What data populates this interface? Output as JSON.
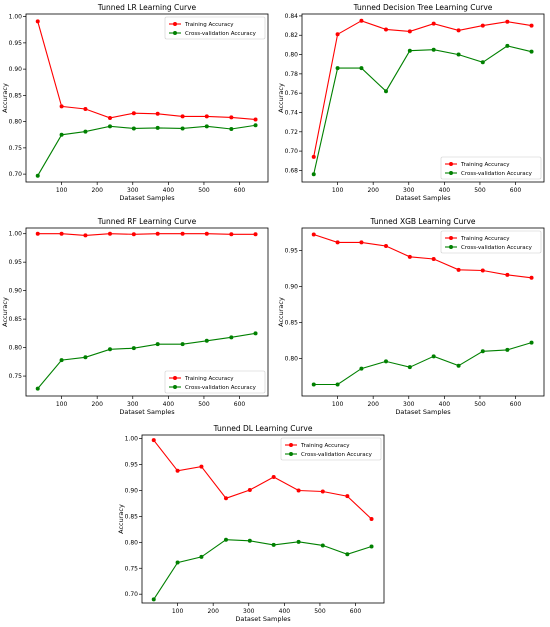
{
  "chart_data": [
    {
      "type": "line",
      "title": "Tunned LR Learning Curve",
      "xlabel": "Dataset Samples",
      "ylabel": "Accuracy",
      "x": [
        33,
        100,
        167,
        236,
        303,
        370,
        440,
        508,
        577,
        645
      ],
      "xlim": [
        0,
        680
      ],
      "xticks": [
        100,
        200,
        300,
        400,
        500,
        600
      ],
      "ylim": [
        0.685,
        1.005
      ],
      "yticks": [
        0.7,
        0.75,
        0.8,
        0.85,
        0.9,
        0.95,
        1.0
      ],
      "yticklabels": [
        "0.70",
        "0.75",
        "0.80",
        "0.85",
        "0.90",
        "0.95",
        "1.00"
      ],
      "legend_position": "top-right",
      "grid": false,
      "series": [
        {
          "name": "Training Accuracy",
          "color": "#ff0000",
          "values": [
            0.991,
            0.829,
            0.824,
            0.807,
            0.816,
            0.815,
            0.81,
            0.81,
            0.808,
            0.804
          ]
        },
        {
          "name": "Cross-validation Accuracy",
          "color": "#008000",
          "values": [
            0.697,
            0.775,
            0.781,
            0.791,
            0.787,
            0.788,
            0.787,
            0.791,
            0.786,
            0.793
          ]
        }
      ]
    },
    {
      "type": "line",
      "title": "Tunned Decision Tree Learning Curve",
      "xlabel": "Dataset Samples",
      "ylabel": "Accuracy",
      "x": [
        33,
        100,
        167,
        236,
        303,
        370,
        440,
        508,
        577,
        645
      ],
      "xlim": [
        0,
        680
      ],
      "xticks": [
        100,
        200,
        300,
        400,
        500,
        600
      ],
      "ylim": [
        0.668,
        0.842
      ],
      "yticks": [
        0.68,
        0.7,
        0.72,
        0.74,
        0.76,
        0.78,
        0.8,
        0.82,
        0.84
      ],
      "yticklabels": [
        "0.68",
        "0.70",
        "0.72",
        "0.74",
        "0.76",
        "0.78",
        "0.80",
        "0.82",
        "0.84"
      ],
      "legend_position": "bottom-right",
      "grid": false,
      "series": [
        {
          "name": "Training Accuracy",
          "color": "#ff0000",
          "values": [
            0.694,
            0.821,
            0.835,
            0.826,
            0.824,
            0.832,
            0.825,
            0.83,
            0.834,
            0.83
          ]
        },
        {
          "name": "Cross-validation Accuracy",
          "color": "#008000",
          "values": [
            0.676,
            0.786,
            0.786,
            0.762,
            0.804,
            0.805,
            0.8,
            0.792,
            0.809,
            0.803
          ]
        }
      ]
    },
    {
      "type": "line",
      "title": "Tunned RF Learning Curve",
      "xlabel": "Dataset Samples",
      "ylabel": "Accuracy",
      "x": [
        33,
        100,
        167,
        236,
        303,
        370,
        440,
        508,
        577,
        645
      ],
      "xlim": [
        0,
        680
      ],
      "xticks": [
        100,
        200,
        300,
        400,
        500,
        600
      ],
      "ylim": [
        0.715,
        1.01
      ],
      "yticks": [
        0.75,
        0.8,
        0.85,
        0.9,
        0.95,
        1.0
      ],
      "yticklabels": [
        "0.75",
        "0.80",
        "0.85",
        "0.90",
        "0.95",
        "1.00"
      ],
      "legend_position": "bottom-right",
      "grid": false,
      "series": [
        {
          "name": "Training Accuracy",
          "color": "#ff0000",
          "values": [
            1.0,
            1.0,
            0.997,
            1.0,
            0.999,
            1.0,
            1.0,
            1.0,
            0.999,
            0.999
          ]
        },
        {
          "name": "Cross-validation Accuracy",
          "color": "#008000",
          "values": [
            0.728,
            0.778,
            0.783,
            0.797,
            0.799,
            0.806,
            0.806,
            0.812,
            0.818,
            0.825
          ]
        }
      ]
    },
    {
      "type": "line",
      "title": "Tunned XGB Learning Curve",
      "xlabel": "Dataset Samples",
      "ylabel": "Accuracy",
      "x": [
        33,
        100,
        167,
        236,
        303,
        370,
        440,
        508,
        577,
        645
      ],
      "xlim": [
        0,
        680
      ],
      "xticks": [
        100,
        200,
        300,
        400,
        500,
        600
      ],
      "ylim": [
        0.748,
        0.981
      ],
      "yticks": [
        0.8,
        0.85,
        0.9,
        0.95
      ],
      "yticklabels": [
        "0.80",
        "0.85",
        "0.90",
        "0.95"
      ],
      "legend_position": "top-right",
      "grid": false,
      "series": [
        {
          "name": "Training Accuracy",
          "color": "#ff0000",
          "values": [
            0.972,
            0.961,
            0.961,
            0.956,
            0.941,
            0.938,
            0.923,
            0.922,
            0.916,
            0.912
          ]
        },
        {
          "name": "Cross-validation Accuracy",
          "color": "#008000",
          "values": [
            0.764,
            0.764,
            0.786,
            0.796,
            0.788,
            0.803,
            0.79,
            0.81,
            0.812,
            0.822
          ]
        }
      ]
    },
    {
      "type": "line",
      "title": "Tunned DL Learning Curve",
      "xlabel": "Dataset Samples",
      "ylabel": "Accuracy",
      "x": [
        33,
        100,
        167,
        236,
        303,
        370,
        440,
        508,
        577,
        645
      ],
      "xlim": [
        0,
        680
      ],
      "xticks": [
        100,
        200,
        300,
        400,
        500,
        600
      ],
      "ylim": [
        0.683,
        1.007
      ],
      "yticks": [
        0.7,
        0.75,
        0.8,
        0.85,
        0.9,
        0.95,
        1.0
      ],
      "yticklabels": [
        "0.70",
        "0.75",
        "0.80",
        "0.85",
        "0.90",
        "0.95",
        "1.00"
      ],
      "legend_position": "top-right",
      "grid": false,
      "series": [
        {
          "name": "Training Accuracy",
          "color": "#ff0000",
          "values": [
            0.997,
            0.938,
            0.946,
            0.885,
            0.901,
            0.926,
            0.9,
            0.898,
            0.889,
            0.845
          ]
        },
        {
          "name": "Cross-validation Accuracy",
          "color": "#008000",
          "values": [
            0.69,
            0.761,
            0.772,
            0.805,
            0.803,
            0.795,
            0.801,
            0.794,
            0.777,
            0.792
          ]
        }
      ]
    }
  ]
}
